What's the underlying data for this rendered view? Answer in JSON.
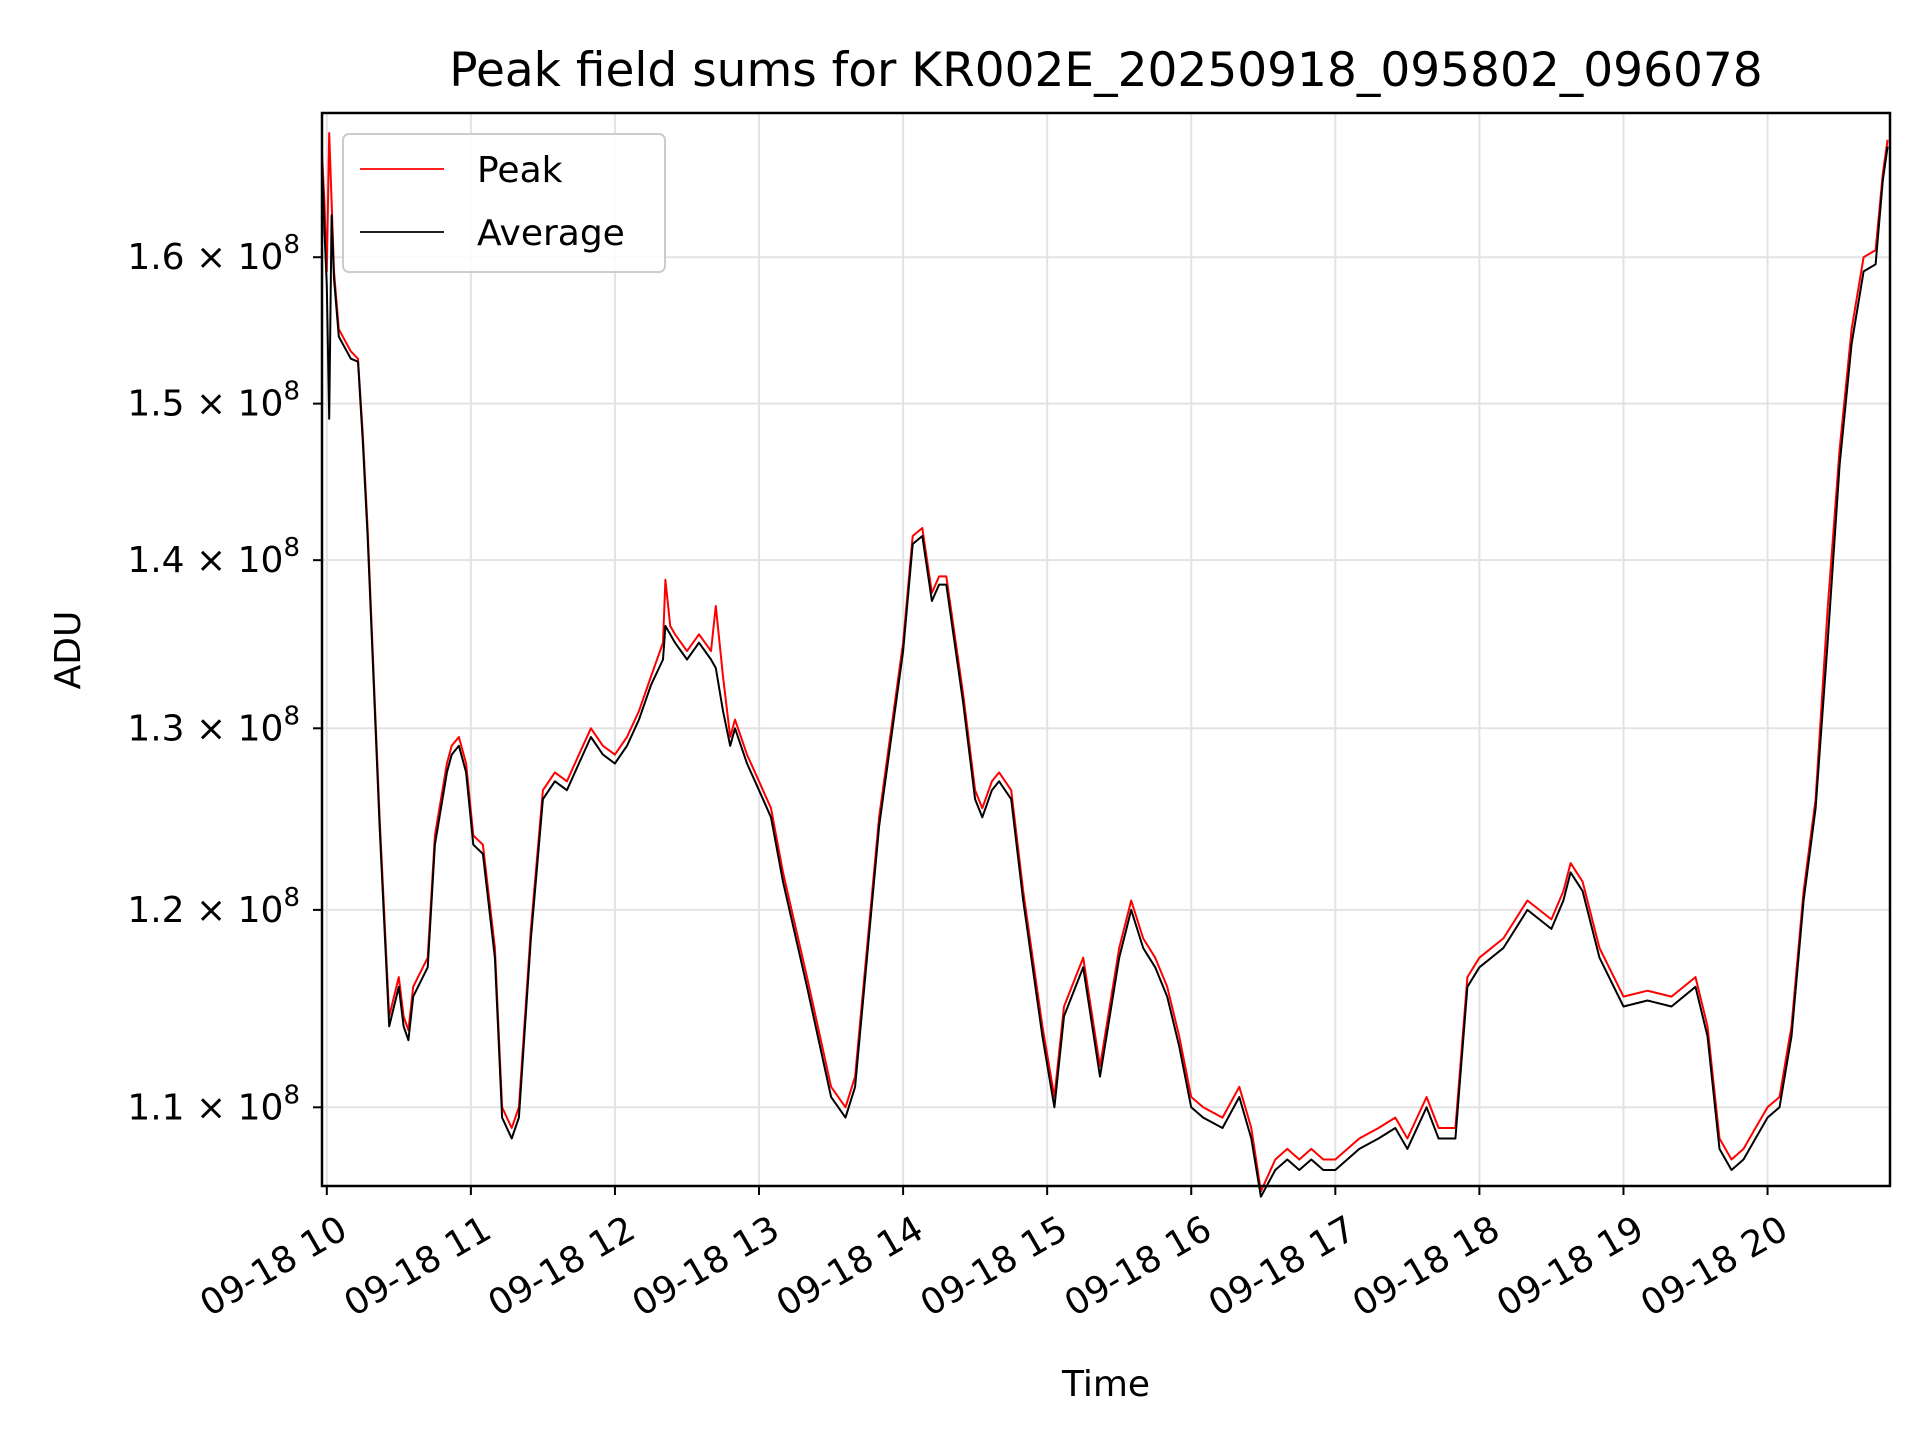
{
  "chart_data": {
    "type": "line",
    "title": "Peak field sums for KR002E_20250918_095802_096078",
    "xlabel": "Time",
    "ylabel": "ADU",
    "y_scale": "log",
    "ylim": [
      106250000.0,
      170500000.0
    ],
    "xlim": [
      "2025-09-18T09:58:00",
      "2025-09-18T20:51:00"
    ],
    "grid": true,
    "legend_position": "upper left",
    "x_ticks": [
      {
        "value": "2025-09-18T10:00",
        "label": "09-18 10"
      },
      {
        "value": "2025-09-18T11:00",
        "label": "09-18 11"
      },
      {
        "value": "2025-09-18T12:00",
        "label": "09-18 12"
      },
      {
        "value": "2025-09-18T13:00",
        "label": "09-18 13"
      },
      {
        "value": "2025-09-18T14:00",
        "label": "09-18 14"
      },
      {
        "value": "2025-09-18T15:00",
        "label": "09-18 15"
      },
      {
        "value": "2025-09-18T16:00",
        "label": "09-18 16"
      },
      {
        "value": "2025-09-18T17:00",
        "label": "09-18 17"
      },
      {
        "value": "2025-09-18T18:00",
        "label": "09-18 18"
      },
      {
        "value": "2025-09-18T19:00",
        "label": "09-18 19"
      },
      {
        "value": "2025-09-18T20:00",
        "label": "09-18 20"
      }
    ],
    "y_ticks": [
      {
        "value": 110000000.0,
        "mantissa": "1.1",
        "exponent": "8"
      },
      {
        "value": 120000000.0,
        "mantissa": "1.2",
        "exponent": "8"
      },
      {
        "value": 130000000.0,
        "mantissa": "1.3",
        "exponent": "8"
      },
      {
        "value": 140000000.0,
        "mantissa": "1.4",
        "exponent": "8"
      },
      {
        "value": 150000000.0,
        "mantissa": "1.5",
        "exponent": "8"
      },
      {
        "value": 160000000.0,
        "mantissa": "1.6",
        "exponent": "8"
      }
    ],
    "series": [
      {
        "name": "Peak",
        "color": "#ff0000",
        "x": [
          "2025-09-18T09:58",
          "2025-09-18T09:59",
          "2025-09-18T10:00",
          "2025-09-18T10:01",
          "2025-09-18T10:02",
          "2025-09-18T10:03",
          "2025-09-18T10:05",
          "2025-09-18T10:10",
          "2025-09-18T10:13",
          "2025-09-18T10:15",
          "2025-09-18T10:17",
          "2025-09-18T10:22",
          "2025-09-18T10:26",
          "2025-09-18T10:28",
          "2025-09-18T10:30",
          "2025-09-18T10:32",
          "2025-09-18T10:34",
          "2025-09-18T10:36",
          "2025-09-18T10:38",
          "2025-09-18T10:42",
          "2025-09-18T10:45",
          "2025-09-18T10:50",
          "2025-09-18T10:52",
          "2025-09-18T10:55",
          "2025-09-18T10:58",
          "2025-09-18T11:01",
          "2025-09-18T11:05",
          "2025-09-18T11:10",
          "2025-09-18T11:13",
          "2025-09-18T11:17",
          "2025-09-18T11:20",
          "2025-09-18T11:25",
          "2025-09-18T11:30",
          "2025-09-18T11:35",
          "2025-09-18T11:40",
          "2025-09-18T11:45",
          "2025-09-18T11:50",
          "2025-09-18T11:55",
          "2025-09-18T12:00",
          "2025-09-18T12:05",
          "2025-09-18T12:10",
          "2025-09-18T12:15",
          "2025-09-18T12:20",
          "2025-09-18T12:21",
          "2025-09-18T12:23",
          "2025-09-18T12:25",
          "2025-09-18T12:30",
          "2025-09-18T12:35",
          "2025-09-18T12:40",
          "2025-09-18T12:42",
          "2025-09-18T12:45",
          "2025-09-18T12:48",
          "2025-09-18T12:50",
          "2025-09-18T12:55",
          "2025-09-18T13:00",
          "2025-09-18T13:05",
          "2025-09-18T13:10",
          "2025-09-18T13:20",
          "2025-09-18T13:30",
          "2025-09-18T13:36",
          "2025-09-18T13:40",
          "2025-09-18T13:50",
          "2025-09-18T14:00",
          "2025-09-18T14:04",
          "2025-09-18T14:08",
          "2025-09-18T14:12",
          "2025-09-18T14:15",
          "2025-09-18T14:18",
          "2025-09-18T14:25",
          "2025-09-18T14:30",
          "2025-09-18T14:33",
          "2025-09-18T14:37",
          "2025-09-18T14:40",
          "2025-09-18T14:45",
          "2025-09-18T14:50",
          "2025-09-18T14:58",
          "2025-09-18T15:03",
          "2025-09-18T15:07",
          "2025-09-18T15:15",
          "2025-09-18T15:22",
          "2025-09-18T15:30",
          "2025-09-18T15:35",
          "2025-09-18T15:40",
          "2025-09-18T15:45",
          "2025-09-18T15:50",
          "2025-09-18T15:55",
          "2025-09-18T16:00",
          "2025-09-18T16:05",
          "2025-09-18T16:13",
          "2025-09-18T16:20",
          "2025-09-18T16:25",
          "2025-09-18T16:29",
          "2025-09-18T16:35",
          "2025-09-18T16:40",
          "2025-09-18T16:45",
          "2025-09-18T16:50",
          "2025-09-18T16:55",
          "2025-09-18T17:00",
          "2025-09-18T17:10",
          "2025-09-18T17:18",
          "2025-09-18T17:25",
          "2025-09-18T17:30",
          "2025-09-18T17:38",
          "2025-09-18T17:43",
          "2025-09-18T17:50",
          "2025-09-18T17:55",
          "2025-09-18T18:00",
          "2025-09-18T18:10",
          "2025-09-18T18:20",
          "2025-09-18T18:30",
          "2025-09-18T18:35",
          "2025-09-18T18:38",
          "2025-09-18T18:43",
          "2025-09-18T18:50",
          "2025-09-18T19:00",
          "2025-09-18T19:10",
          "2025-09-18T19:20",
          "2025-09-18T19:30",
          "2025-09-18T19:35",
          "2025-09-18T19:40",
          "2025-09-18T19:45",
          "2025-09-18T19:50",
          "2025-09-18T19:55",
          "2025-09-18T20:00",
          "2025-09-18T20:05",
          "2025-09-18T20:10",
          "2025-09-18T20:15",
          "2025-09-18T20:20",
          "2025-09-18T20:25",
          "2025-09-18T20:30",
          "2025-09-18T20:35",
          "2025-09-18T20:40",
          "2025-09-18T20:45",
          "2025-09-18T20:48",
          "2025-09-18T20:50"
        ],
        "y": [
          167500000.0,
          164000000.0,
          159000000.0,
          169000000.0,
          164000000.0,
          159000000.0,
          155000000.0,
          153500000.0,
          153000000.0,
          148000000.0,
          142000000.0,
          125000000.0,
          114500000.0,
          115500000.0,
          116500000.0,
          114500000.0,
          113800000.0,
          116000000.0,
          116500000.0,
          117500000.0,
          124000000.0,
          128000000.0,
          129000000.0,
          129500000.0,
          128000000.0,
          124000000.0,
          123500000.0,
          118000000.0,
          110000000.0,
          109000000.0,
          110000000.0,
          119000000.0,
          126500000.0,
          127500000.0,
          127000000.0,
          128500000.0,
          130000000.0,
          129000000.0,
          128500000.0,
          129500000.0,
          131000000.0,
          133000000.0,
          135000000.0,
          138800000.0,
          136000000.0,
          135500000.0,
          134500000.0,
          135500000.0,
          134500000.0,
          137200000.0,
          133000000.0,
          129500000.0,
          130500000.0,
          128500000.0,
          127000000.0,
          125500000.0,
          122000000.0,
          116500000.0,
          111000000.0,
          110000000.0,
          111500000.0,
          125000000.0,
          135000000.0,
          141500000.0,
          142000000.0,
          138000000.0,
          139000000.0,
          139000000.0,
          132000000.0,
          126500000.0,
          125500000.0,
          127000000.0,
          127500000.0,
          126500000.0,
          121000000.0,
          114000000.0,
          110500000.0,
          115000000.0,
          117500000.0,
          112000000.0,
          118000000.0,
          120500000.0,
          118500000.0,
          117500000.0,
          116000000.0,
          113500000.0,
          110500000.0,
          110000000.0,
          109500000.0,
          111000000.0,
          109000000.0,
          106000000.0,
          107500000.0,
          108000000.0,
          107500000.0,
          108000000.0,
          107500000.0,
          107500000.0,
          108500000.0,
          109000000.0,
          109500000.0,
          108500000.0,
          110500000.0,
          109000000.0,
          109000000.0,
          116500000.0,
          117500000.0,
          118500000.0,
          120500000.0,
          119500000.0,
          121000000.0,
          122500000.0,
          121500000.0,
          118000000.0,
          115500000.0,
          115800000.0,
          115500000.0,
          116500000.0,
          114000000.0,
          108500000.0,
          107500000.0,
          108000000.0,
          109000000.0,
          110000000.0,
          110500000.0,
          114000000.0,
          121000000.0,
          126000000.0,
          137000000.0,
          147000000.0,
          155000000.0,
          160000000.0,
          160500000.0,
          166000000.0,
          168500000.0
        ]
      },
      {
        "name": "Average",
        "color": "#000000",
        "x": [
          "2025-09-18T09:58",
          "2025-09-18T09:59",
          "2025-09-18T10:00",
          "2025-09-18T10:01",
          "2025-09-18T10:02",
          "2025-09-18T10:03",
          "2025-09-18T10:05",
          "2025-09-18T10:10",
          "2025-09-18T10:13",
          "2025-09-18T10:15",
          "2025-09-18T10:17",
          "2025-09-18T10:22",
          "2025-09-18T10:26",
          "2025-09-18T10:28",
          "2025-09-18T10:30",
          "2025-09-18T10:32",
          "2025-09-18T10:34",
          "2025-09-18T10:36",
          "2025-09-18T10:38",
          "2025-09-18T10:42",
          "2025-09-18T10:45",
          "2025-09-18T10:50",
          "2025-09-18T10:52",
          "2025-09-18T10:55",
          "2025-09-18T10:58",
          "2025-09-18T11:01",
          "2025-09-18T11:05",
          "2025-09-18T11:10",
          "2025-09-18T11:13",
          "2025-09-18T11:17",
          "2025-09-18T11:20",
          "2025-09-18T11:25",
          "2025-09-18T11:30",
          "2025-09-18T11:35",
          "2025-09-18T11:40",
          "2025-09-18T11:45",
          "2025-09-18T11:50",
          "2025-09-18T11:55",
          "2025-09-18T12:00",
          "2025-09-18T12:05",
          "2025-09-18T12:10",
          "2025-09-18T12:15",
          "2025-09-18T12:20",
          "2025-09-18T12:21",
          "2025-09-18T12:23",
          "2025-09-18T12:25",
          "2025-09-18T12:30",
          "2025-09-18T12:35",
          "2025-09-18T12:40",
          "2025-09-18T12:42",
          "2025-09-18T12:45",
          "2025-09-18T12:48",
          "2025-09-18T12:50",
          "2025-09-18T12:55",
          "2025-09-18T13:00",
          "2025-09-18T13:05",
          "2025-09-18T13:10",
          "2025-09-18T13:20",
          "2025-09-18T13:30",
          "2025-09-18T13:36",
          "2025-09-18T13:40",
          "2025-09-18T13:50",
          "2025-09-18T14:00",
          "2025-09-18T14:04",
          "2025-09-18T14:08",
          "2025-09-18T14:12",
          "2025-09-18T14:15",
          "2025-09-18T14:18",
          "2025-09-18T14:25",
          "2025-09-18T14:30",
          "2025-09-18T14:33",
          "2025-09-18T14:37",
          "2025-09-18T14:40",
          "2025-09-18T14:45",
          "2025-09-18T14:50",
          "2025-09-18T14:58",
          "2025-09-18T15:03",
          "2025-09-18T15:07",
          "2025-09-18T15:15",
          "2025-09-18T15:22",
          "2025-09-18T15:30",
          "2025-09-18T15:35",
          "2025-09-18T15:40",
          "2025-09-18T15:45",
          "2025-09-18T15:50",
          "2025-09-18T15:55",
          "2025-09-18T16:00",
          "2025-09-18T16:05",
          "2025-09-18T16:13",
          "2025-09-18T16:20",
          "2025-09-18T16:25",
          "2025-09-18T16:29",
          "2025-09-18T16:35",
          "2025-09-18T16:40",
          "2025-09-18T16:45",
          "2025-09-18T16:50",
          "2025-09-18T16:55",
          "2025-09-18T17:00",
          "2025-09-18T17:10",
          "2025-09-18T17:18",
          "2025-09-18T17:25",
          "2025-09-18T17:30",
          "2025-09-18T17:38",
          "2025-09-18T17:43",
          "2025-09-18T17:50",
          "2025-09-18T17:55",
          "2025-09-18T18:00",
          "2025-09-18T18:10",
          "2025-09-18T18:20",
          "2025-09-18T18:30",
          "2025-09-18T18:35",
          "2025-09-18T18:38",
          "2025-09-18T18:43",
          "2025-09-18T18:50",
          "2025-09-18T19:00",
          "2025-09-18T19:10",
          "2025-09-18T19:20",
          "2025-09-18T19:30",
          "2025-09-18T19:35",
          "2025-09-18T19:40",
          "2025-09-18T19:45",
          "2025-09-18T19:50",
          "2025-09-18T19:55",
          "2025-09-18T20:00",
          "2025-09-18T20:05",
          "2025-09-18T20:10",
          "2025-09-18T20:15",
          "2025-09-18T20:20",
          "2025-09-18T20:25",
          "2025-09-18T20:30",
          "2025-09-18T20:35",
          "2025-09-18T20:40",
          "2025-09-18T20:45",
          "2025-09-18T20:48",
          "2025-09-18T20:50"
        ],
        "y": [
          167000000.0,
          162000000.0,
          158000000.0,
          149000000.0,
          163000000.0,
          158500000.0,
          154500000.0,
          153000000.0,
          152800000.0,
          147500000.0,
          141500000.0,
          124500000.0,
          114000000.0,
          115000000.0,
          116000000.0,
          114000000.0,
          113300000.0,
          115500000.0,
          116000000.0,
          117000000.0,
          123500000.0,
          127500000.0,
          128500000.0,
          129000000.0,
          127500000.0,
          123500000.0,
          123000000.0,
          117500000.0,
          109500000.0,
          108500000.0,
          109500000.0,
          118500000.0,
          126000000.0,
          127000000.0,
          126500000.0,
          128000000.0,
          129500000.0,
          128500000.0,
          128000000.0,
          129000000.0,
          130500000.0,
          132500000.0,
          134000000.0,
          136000000.0,
          135500000.0,
          135000000.0,
          134000000.0,
          135000000.0,
          134000000.0,
          133500000.0,
          131000000.0,
          129000000.0,
          130000000.0,
          128000000.0,
          126500000.0,
          125000000.0,
          121500000.0,
          116000000.0,
          110500000.0,
          109500000.0,
          111000000.0,
          124500000.0,
          134500000.0,
          141000000.0,
          141500000.0,
          137500000.0,
          138500000.0,
          138500000.0,
          131500000.0,
          126000000.0,
          125000000.0,
          126500000.0,
          127000000.0,
          126000000.0,
          120500000.0,
          113500000.0,
          110000000.0,
          114500000.0,
          117000000.0,
          111500000.0,
          117500000.0,
          120000000.0,
          118000000.0,
          117000000.0,
          115500000.0,
          113000000.0,
          110000000.0,
          109500000.0,
          109000000.0,
          110500000.0,
          108500000.0,
          105750000.0,
          107000000.0,
          107500000.0,
          107000000.0,
          107500000.0,
          107000000.0,
          107000000.0,
          108000000.0,
          108500000.0,
          109000000.0,
          108000000.0,
          110000000.0,
          108500000.0,
          108500000.0,
          116000000.0,
          117000000.0,
          118000000.0,
          120000000.0,
          119000000.0,
          120500000.0,
          122000000.0,
          121000000.0,
          117500000.0,
          115000000.0,
          115300000.0,
          115000000.0,
          116000000.0,
          113500000.0,
          108000000.0,
          107000000.0,
          107500000.0,
          108500000.0,
          109500000.0,
          110000000.0,
          113500000.0,
          120500000.0,
          125500000.0,
          135000000.0,
          146000000.0,
          154000000.0,
          159000000.0,
          159500000.0,
          165500000.0,
          168000000.0
        ]
      }
    ]
  }
}
